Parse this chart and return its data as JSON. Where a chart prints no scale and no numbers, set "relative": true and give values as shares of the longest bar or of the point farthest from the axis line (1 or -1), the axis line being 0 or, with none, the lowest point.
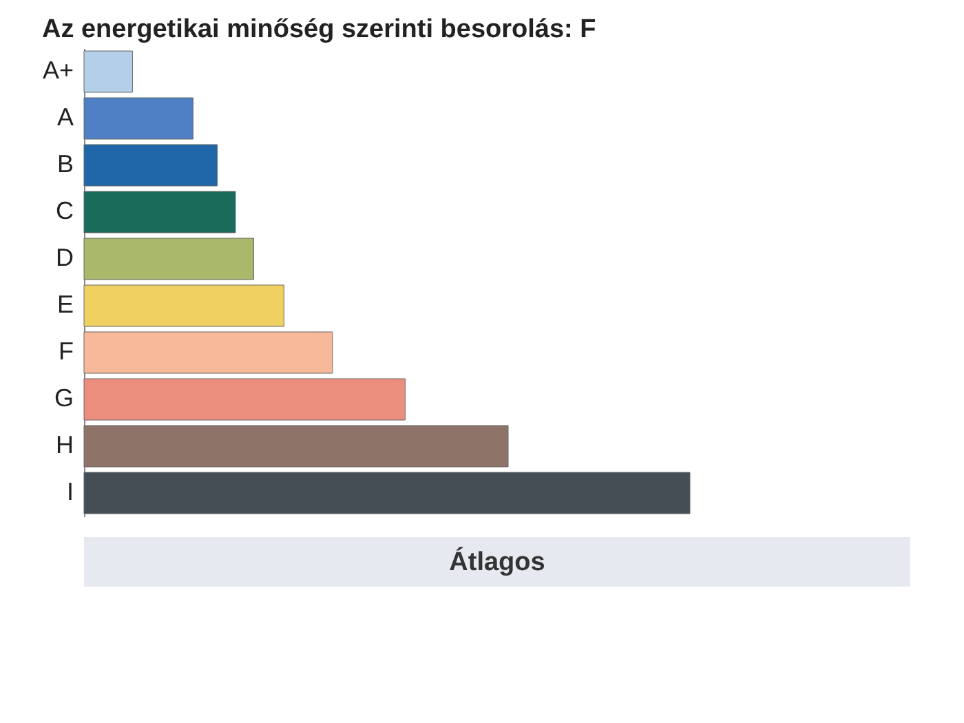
{
  "chart_data": {
    "type": "bar",
    "orientation": "horizontal",
    "relative": true,
    "title": "Az energetikai minőség szerinti besorolás: F",
    "categories": [
      "A+",
      "A",
      "B",
      "C",
      "D",
      "E",
      "F",
      "G",
      "H",
      "I"
    ],
    "values": [
      0.08,
      0.18,
      0.22,
      0.25,
      0.28,
      0.33,
      0.41,
      0.53,
      0.7,
      1
    ],
    "colors": [
      "#b4cfe8",
      "#4f7fc4",
      "#1f67a8",
      "#1b6b5a",
      "#a9b86a",
      "#f0d060",
      "#f8b89a",
      "#ec8e7e",
      "#8e7468",
      "#454d55"
    ],
    "annotations": [
      "Átlagos"
    ]
  }
}
